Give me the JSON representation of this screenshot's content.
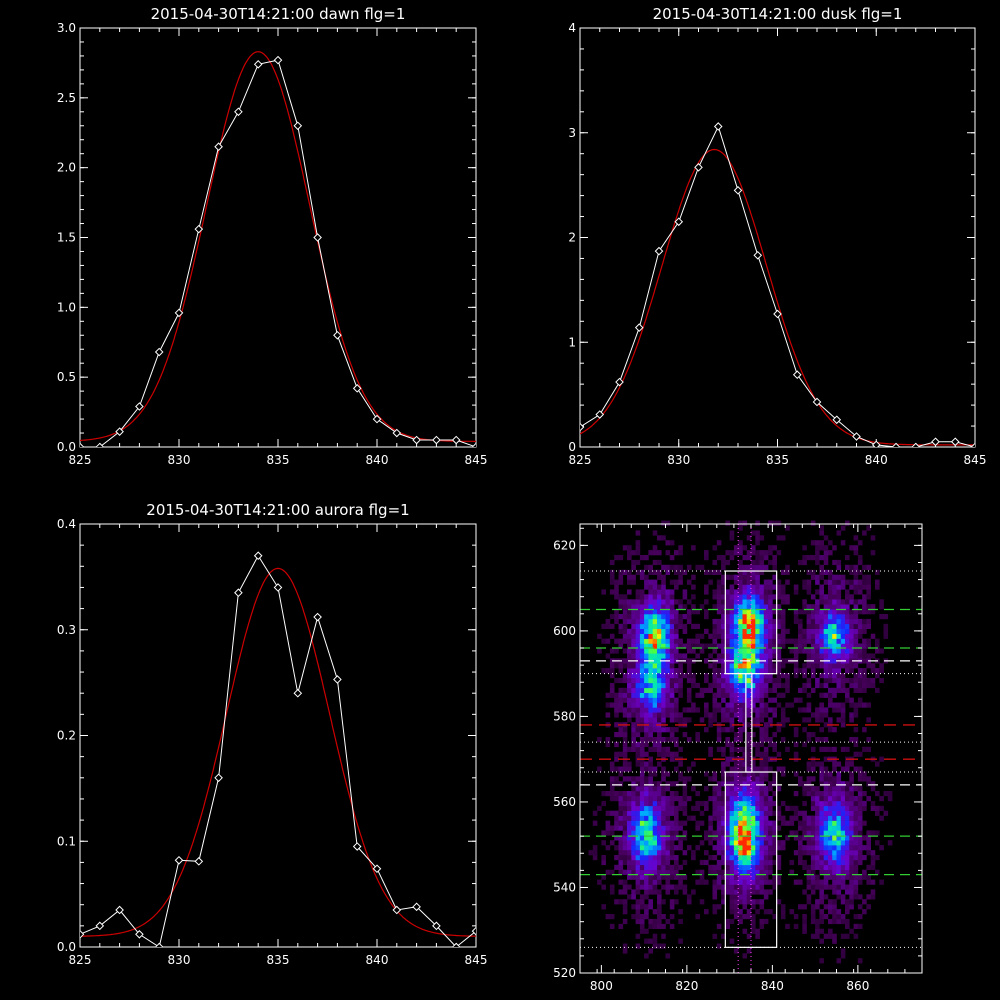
{
  "chart_data": [
    {
      "type": "line",
      "title": "2015-04-30T14:21:00 dawn flg=1",
      "xlim": [
        825,
        845
      ],
      "ylim": [
        0,
        3.0
      ],
      "x_ticks": [
        "825",
        "830",
        "835",
        "840",
        "845"
      ],
      "y_ticks": [
        "0.0",
        "0.5",
        "1.0",
        "1.5",
        "2.0",
        "2.5",
        "3.0"
      ],
      "series": [
        {
          "kind": "data",
          "color": "#ffffff",
          "markers": "diamond",
          "x": [
            825,
            826,
            827,
            828,
            829,
            830,
            831,
            832,
            833,
            834,
            835,
            836,
            837,
            838,
            839,
            840,
            841,
            842,
            843,
            844,
            845
          ],
          "y": [
            0.0,
            0.0,
            0.11,
            0.29,
            0.68,
            0.96,
            1.56,
            2.15,
            2.4,
            2.74,
            2.77,
            2.3,
            1.5,
            0.8,
            0.42,
            0.2,
            0.1,
            0.05,
            0.05,
            0.05,
            0.0
          ]
        },
        {
          "kind": "gaussian-fit",
          "color": "#cc0000",
          "peak": 2.79,
          "center": 834.0,
          "sigma": 2.6,
          "baseline": 0.04
        }
      ]
    },
    {
      "type": "line",
      "title": "2015-04-30T14:21:00 dusk flg=1",
      "xlim": [
        825,
        845
      ],
      "ylim": [
        0,
        4
      ],
      "x_ticks": [
        "825",
        "830",
        "835",
        "840",
        "845"
      ],
      "y_ticks": [
        "0",
        "1",
        "2",
        "3",
        "4"
      ],
      "series": [
        {
          "kind": "data",
          "color": "#ffffff",
          "markers": "diamond",
          "x": [
            825,
            826,
            827,
            828,
            829,
            830,
            831,
            832,
            833,
            834,
            835,
            836,
            837,
            838,
            839,
            840,
            841,
            842,
            843,
            844,
            845
          ],
          "y": [
            0.19,
            0.31,
            0.62,
            1.14,
            1.87,
            2.15,
            2.67,
            3.06,
            2.45,
            1.83,
            1.27,
            0.69,
            0.43,
            0.26,
            0.1,
            0.02,
            0.0,
            0.0,
            0.05,
            0.05,
            0.0
          ]
        },
        {
          "kind": "gaussian-fit",
          "color": "#cc0000",
          "peak": 2.82,
          "center": 831.8,
          "sigma": 2.65,
          "baseline": 0.02
        }
      ]
    },
    {
      "type": "line",
      "title": "2015-04-30T14:21:00 aurora flg=1",
      "xlim": [
        825,
        845
      ],
      "ylim": [
        0,
        0.4
      ],
      "x_ticks": [
        "825",
        "830",
        "835",
        "840",
        "845"
      ],
      "y_ticks": [
        "0.0",
        "0.1",
        "0.2",
        "0.3",
        "0.4"
      ],
      "series": [
        {
          "kind": "data",
          "color": "#ffffff",
          "markers": "diamond",
          "x": [
            825,
            826,
            827,
            828,
            829,
            830,
            831,
            832,
            833,
            834,
            835,
            836,
            837,
            838,
            839,
            840,
            841,
            842,
            843,
            844,
            845
          ],
          "y": [
            0.012,
            0.02,
            0.035,
            0.012,
            0.0,
            0.082,
            0.081,
            0.16,
            0.335,
            0.37,
            0.34,
            0.24,
            0.312,
            0.253,
            0.095,
            0.074,
            0.035,
            0.038,
            0.02,
            0.0,
            0.015
          ]
        },
        {
          "kind": "gaussian-fit",
          "color": "#cc0000",
          "peak": 0.348,
          "center": 835.0,
          "sigma": 2.6,
          "baseline": 0.01
        }
      ]
    },
    {
      "type": "heatmap",
      "xlim": [
        795,
        875
      ],
      "ylim": [
        520,
        625
      ],
      "x_ticks": [
        "800",
        "820",
        "840",
        "860"
      ],
      "y_ticks": [
        "520",
        "540",
        "560",
        "580",
        "600",
        "620"
      ],
      "colormap": "rainbow",
      "blobs": [
        {
          "x": 812,
          "y": 598,
          "sx": 2.5,
          "sy": 5,
          "v": 0.75
        },
        {
          "x": 811,
          "y": 586,
          "sx": 2.5,
          "sy": 4,
          "v": 0.5
        },
        {
          "x": 834,
          "y": 600,
          "sx": 2.5,
          "sy": 5,
          "v": 0.88
        },
        {
          "x": 833,
          "y": 590,
          "sx": 2.5,
          "sy": 4,
          "v": 0.6
        },
        {
          "x": 854,
          "y": 598,
          "sx": 2.5,
          "sy": 4,
          "v": 0.55
        },
        {
          "x": 810,
          "y": 552,
          "sx": 2.5,
          "sy": 5,
          "v": 0.6
        },
        {
          "x": 833,
          "y": 552,
          "sx": 2.5,
          "sy": 6,
          "v": 0.95
        },
        {
          "x": 854,
          "y": 552,
          "sx": 2.5,
          "sy": 5,
          "v": 0.55
        }
      ],
      "boxes": [
        {
          "x0": 829,
          "x1": 841,
          "y0": 590,
          "y1": 614
        },
        {
          "x0": 829,
          "x1": 841,
          "y0": 526,
          "y1": 567
        }
      ],
      "connector": {
        "x": 834.5,
        "y0": 567,
        "y1": 590
      },
      "green_dashed": [
        605,
        596,
        552,
        543
      ],
      "white_dashed": [
        593,
        564
      ],
      "red_dashed": [
        578,
        570
      ],
      "dotted_horizontal": [
        614,
        590,
        574,
        567,
        526
      ],
      "dotted_vertical": [
        832,
        835
      ]
    }
  ]
}
